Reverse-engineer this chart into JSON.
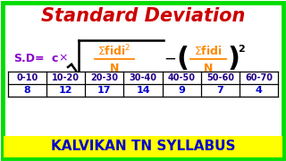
{
  "title": "Standard Deviation",
  "title_color": "#cc0000",
  "title_fontsize": 15,
  "bg_color": "#ffffff",
  "border_color": "#00dd00",
  "formula_sd_color": "#8800cc",
  "formula_main_color": "#ff8800",
  "table_headers": [
    "0-10",
    "10-20",
    "20-30",
    "30-40",
    "40-50",
    "50-60",
    "60-70"
  ],
  "table_values": [
    "8",
    "12",
    "17",
    "14",
    "9",
    "7",
    "4"
  ],
  "table_header_color": "#220088",
  "table_value_color": "#0000cc",
  "footer_text": "KALVIKAN TN SYLLABUS",
  "footer_bg": "#ffff00",
  "footer_text_color": "#0000cc",
  "footer_fontsize": 11,
  "sqrt_color": "#000000",
  "minus_color": "#000000",
  "paren_color": "#000000"
}
